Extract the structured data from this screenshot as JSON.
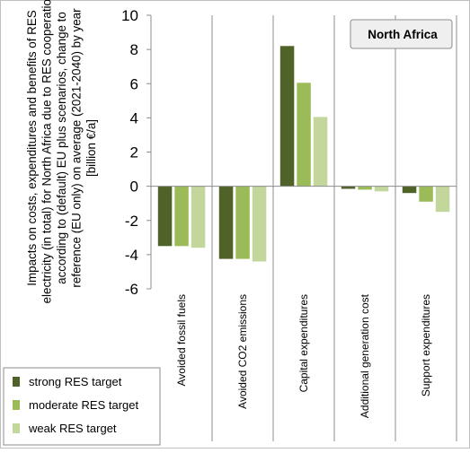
{
  "chart_data": {
    "type": "bar",
    "ylabel_lines": [
      "Impacts on costs, expenditures and benefits of RES",
      "electricity (in total) for North Africa due to RES cooperation",
      "according to (default) EU plus scenarios, change to",
      "reference (EU only) on average (2021-2040) by year",
      "[billion €/a]"
    ],
    "annotation": "North Africa",
    "categories": [
      "Avoided fossil fuels",
      "Avoided CO2 emissions",
      "Capital expenditures",
      "Additional generation cost",
      "Support expenditures"
    ],
    "series": [
      {
        "name": "strong RES target",
        "color": "#4f6228",
        "values": [
          -3.5,
          -4.25,
          8.2,
          -0.15,
          -0.4
        ]
      },
      {
        "name": "moderate RES target",
        "color": "#9bbb59",
        "values": [
          -3.5,
          -4.25,
          6.05,
          -0.2,
          -0.9
        ]
      },
      {
        "name": "weak RES target",
        "color": "#c3d69b",
        "values": [
          -3.6,
          -4.4,
          4.05,
          -0.3,
          -1.5
        ]
      }
    ],
    "ylim": [
      -6,
      10
    ],
    "yticks": [
      -6,
      -4,
      -2,
      0,
      2,
      4,
      6,
      8,
      10
    ],
    "legend_position": "bottom-left",
    "grid": false
  }
}
